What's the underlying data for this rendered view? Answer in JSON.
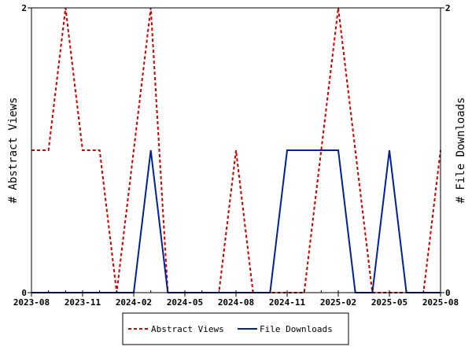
{
  "chart_data": {
    "type": "line",
    "title": "",
    "xlabel": "",
    "ylabel_left": "# Abstract Views",
    "ylabel_right": "# File Downloads",
    "x": [
      "2023-08",
      "2023-09",
      "2023-10",
      "2023-11",
      "2023-12",
      "2024-01",
      "2024-02",
      "2024-03",
      "2024-04",
      "2024-05",
      "2024-06",
      "2024-07",
      "2024-08",
      "2024-09",
      "2024-10",
      "2024-11",
      "2024-12",
      "2025-01",
      "2025-02",
      "2025-03",
      "2025-04",
      "2025-05",
      "2025-06",
      "2025-07",
      "2025-08"
    ],
    "xticks": [
      "2023-08",
      "2023-11",
      "2024-02",
      "2024-05",
      "2024-08",
      "2024-11",
      "2025-02",
      "2025-05",
      "2025-08"
    ],
    "ylim_left": [
      0,
      2
    ],
    "ylim_right": [
      0,
      2
    ],
    "yticks_left": [
      "0",
      "2"
    ],
    "yticks_right": [
      "0",
      "2"
    ],
    "grid": false,
    "legend_position": "bottom",
    "series": [
      {
        "name": "Abstract Views",
        "axis": "left",
        "color": "#cc0000",
        "style": "dashed",
        "values": [
          1,
          1,
          2,
          1,
          1,
          0,
          1,
          2,
          0,
          0,
          0,
          0,
          1,
          0,
          0,
          0,
          0,
          1,
          2,
          1,
          0,
          0,
          0,
          0,
          1
        ]
      },
      {
        "name": "File Downloads",
        "axis": "right",
        "color": "#00209f",
        "style": "solid",
        "values": [
          0,
          0,
          0,
          0,
          0,
          0,
          0,
          1,
          0,
          0,
          0,
          0,
          0,
          0,
          0,
          1,
          1,
          1,
          1,
          0,
          0,
          1,
          0,
          0,
          0
        ]
      }
    ]
  }
}
